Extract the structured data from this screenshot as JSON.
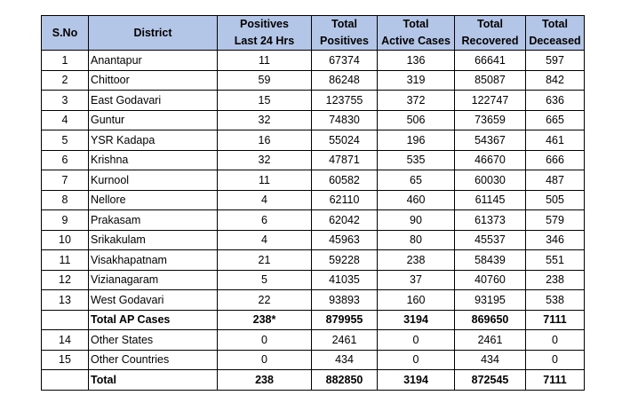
{
  "table": {
    "headers": [
      [
        "S.No"
      ],
      [
        "District"
      ],
      [
        "Positives",
        "Last 24 Hrs"
      ],
      [
        "Total",
        "Positives"
      ],
      [
        "Total",
        "Active Cases"
      ],
      [
        "Total",
        "Recovered"
      ],
      [
        "Total",
        "Deceased"
      ]
    ],
    "rows": [
      {
        "sno": "1",
        "district": "Anantapur",
        "positives_24h": "11",
        "total_positives": "67374",
        "active": "136",
        "recovered": "66641",
        "deceased": "597",
        "bold": false
      },
      {
        "sno": "2",
        "district": "Chittoor",
        "positives_24h": "59",
        "total_positives": "86248",
        "active": "319",
        "recovered": "85087",
        "deceased": "842",
        "bold": false
      },
      {
        "sno": "3",
        "district": "East Godavari",
        "positives_24h": "15",
        "total_positives": "123755",
        "active": "372",
        "recovered": "122747",
        "deceased": "636",
        "bold": false
      },
      {
        "sno": "4",
        "district": "Guntur",
        "positives_24h": "32",
        "total_positives": "74830",
        "active": "506",
        "recovered": "73659",
        "deceased": "665",
        "bold": false
      },
      {
        "sno": "5",
        "district": "YSR Kadapa",
        "positives_24h": "16",
        "total_positives": "55024",
        "active": "196",
        "recovered": "54367",
        "deceased": "461",
        "bold": false
      },
      {
        "sno": "6",
        "district": "Krishna",
        "positives_24h": "32",
        "total_positives": "47871",
        "active": "535",
        "recovered": "46670",
        "deceased": "666",
        "bold": false
      },
      {
        "sno": "7",
        "district": "Kurnool",
        "positives_24h": "11",
        "total_positives": "60582",
        "active": "65",
        "recovered": "60030",
        "deceased": "487",
        "bold": false
      },
      {
        "sno": "8",
        "district": "Nellore",
        "positives_24h": "4",
        "total_positives": "62110",
        "active": "460",
        "recovered": "61145",
        "deceased": "505",
        "bold": false
      },
      {
        "sno": "9",
        "district": "Prakasam",
        "positives_24h": "6",
        "total_positives": "62042",
        "active": "90",
        "recovered": "61373",
        "deceased": "579",
        "bold": false
      },
      {
        "sno": "10",
        "district": "Srikakulam",
        "positives_24h": "4",
        "total_positives": "45963",
        "active": "80",
        "recovered": "45537",
        "deceased": "346",
        "bold": false
      },
      {
        "sno": "11",
        "district": "Visakhapatnam",
        "positives_24h": "21",
        "total_positives": "59228",
        "active": "238",
        "recovered": "58439",
        "deceased": "551",
        "bold": false
      },
      {
        "sno": "12",
        "district": "Vizianagaram",
        "positives_24h": "5",
        "total_positives": "41035",
        "active": "37",
        "recovered": "40760",
        "deceased": "238",
        "bold": false
      },
      {
        "sno": "13",
        "district": "West Godavari",
        "positives_24h": "22",
        "total_positives": "93893",
        "active": "160",
        "recovered": "93195",
        "deceased": "538",
        "bold": false
      },
      {
        "sno": "",
        "district": "Total AP Cases",
        "positives_24h": "238*",
        "total_positives": "879955",
        "active": "3194",
        "recovered": "869650",
        "deceased": "7111",
        "bold": true
      },
      {
        "sno": "14",
        "district": "Other States",
        "positives_24h": "0",
        "total_positives": "2461",
        "active": "0",
        "recovered": "2461",
        "deceased": "0",
        "bold": false
      },
      {
        "sno": "15",
        "district": "Other Countries",
        "positives_24h": "0",
        "total_positives": "434",
        "active": "0",
        "recovered": "434",
        "deceased": "0",
        "bold": false
      },
      {
        "sno": "",
        "district": "Total",
        "positives_24h": "238",
        "total_positives": "882850",
        "active": "3194",
        "recovered": "872545",
        "deceased": "7111",
        "bold": true
      }
    ]
  },
  "colors": {
    "header_background": "#b4c6e7",
    "border": "#000000",
    "text": "#000000"
  }
}
